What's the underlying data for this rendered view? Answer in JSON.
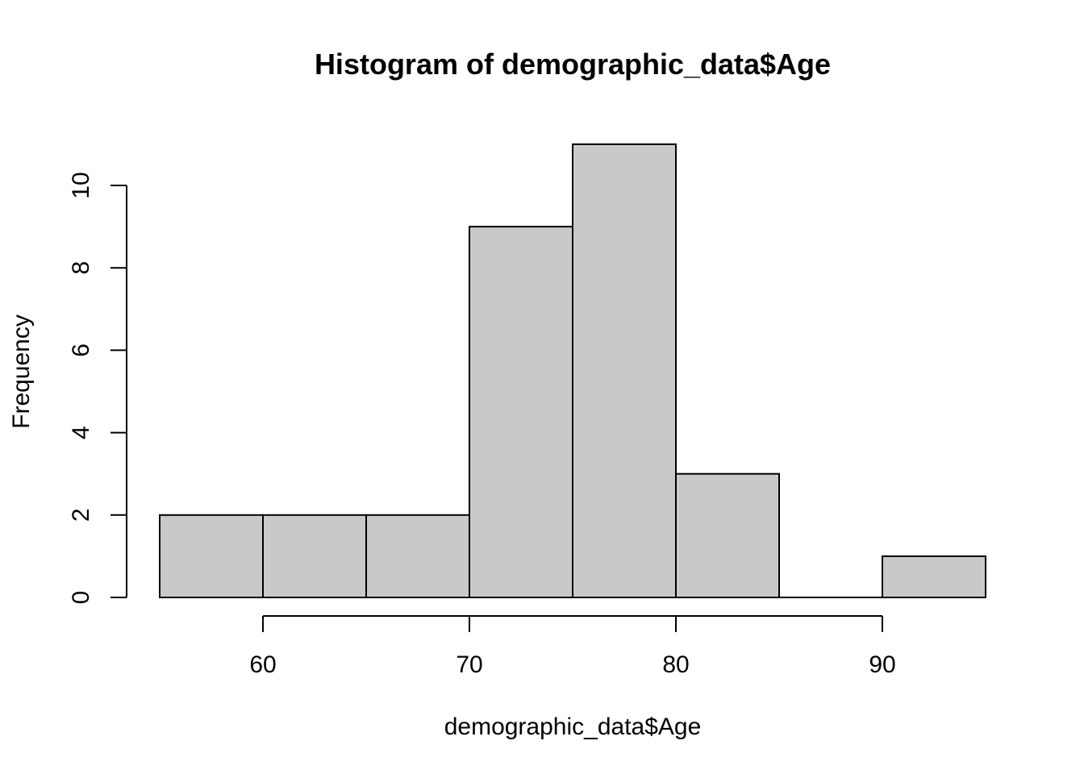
{
  "chart_data": {
    "type": "bar",
    "title": "Histogram of demographic_data$Age",
    "xlabel": "demographic_data$Age",
    "ylabel": "Frequency",
    "bins": [
      {
        "start": 55,
        "end": 60,
        "count": 2
      },
      {
        "start": 60,
        "end": 65,
        "count": 2
      },
      {
        "start": 65,
        "end": 70,
        "count": 2
      },
      {
        "start": 70,
        "end": 75,
        "count": 9
      },
      {
        "start": 75,
        "end": 80,
        "count": 11
      },
      {
        "start": 80,
        "end": 85,
        "count": 3
      },
      {
        "start": 85,
        "end": 90,
        "count": 0
      },
      {
        "start": 90,
        "end": 95,
        "count": 1
      }
    ],
    "x_ticks": [
      60,
      70,
      80,
      90
    ],
    "y_ticks": [
      0,
      2,
      4,
      6,
      8,
      10
    ],
    "xlim": [
      55,
      95
    ],
    "ylim": [
      0,
      11
    ],
    "bar_color": "#c9c9c9",
    "grid": false
  }
}
